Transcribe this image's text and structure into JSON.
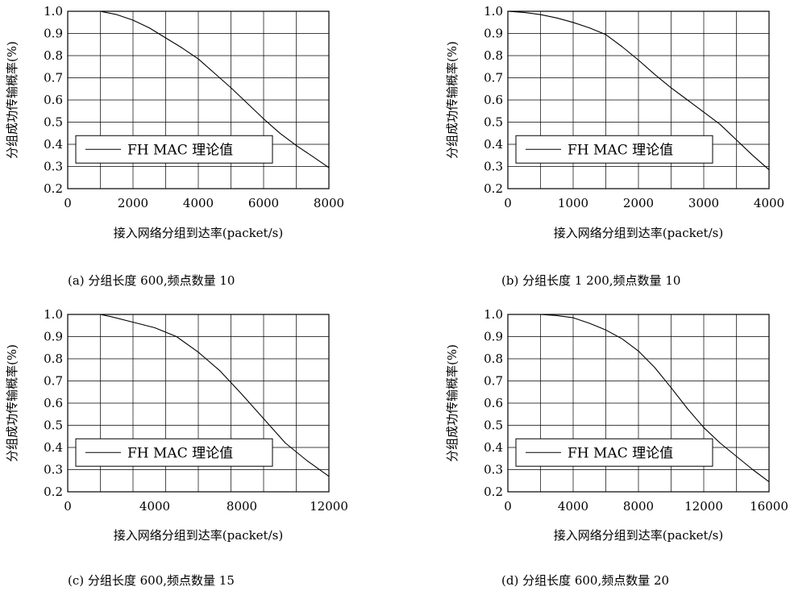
{
  "chart_data": [
    {
      "type": "line",
      "caption": "(a) 分组长度 600,频点数量 10",
      "xlabel": "接入网络分组到达率(packet/s)",
      "ylabel": "分组成功传输概率(%)",
      "xlim": [
        0,
        8000
      ],
      "ylim": [
        0.2,
        1.0
      ],
      "xticks": [
        0,
        2000,
        4000,
        6000,
        8000
      ],
      "xtick_labels": [
        "0",
        "2000",
        "4000",
        "6000",
        "8000"
      ],
      "yticks": [
        0.2,
        0.3,
        0.4,
        0.5,
        0.6,
        0.7,
        0.8,
        0.9,
        1.0
      ],
      "ytick_labels": [
        "0.2",
        "0.3",
        "0.4",
        "0.5",
        "0.6",
        "0.7",
        "0.8",
        "0.9",
        "1.0"
      ],
      "grid_x": [
        0,
        1000,
        2000,
        3000,
        4000,
        5000,
        6000,
        7000,
        8000
      ],
      "grid": true,
      "legend": {
        "label": "FH  MAC 理论值",
        "position": "lower-left"
      },
      "series": [
        {
          "name": "FH  MAC 理论值",
          "x": [
            0,
            1000,
            1500,
            2000,
            2500,
            3000,
            3500,
            4000,
            4500,
            5000,
            5500,
            6000,
            6500,
            7000,
            7500,
            8000
          ],
          "y": [
            1.0,
            1.0,
            0.985,
            0.96,
            0.925,
            0.88,
            0.835,
            0.785,
            0.72,
            0.655,
            0.585,
            0.515,
            0.45,
            0.395,
            0.345,
            0.295
          ]
        }
      ]
    },
    {
      "type": "line",
      "caption": "(b) 分组长度 1 200,频点数量 10",
      "xlabel": "接入网络分组到达率(packet/s)",
      "ylabel": "分组成功传输概率(%)",
      "xlim": [
        0,
        4000
      ],
      "ylim": [
        0.2,
        1.0
      ],
      "xticks": [
        0,
        1000,
        2000,
        3000,
        4000
      ],
      "xtick_labels": [
        "0",
        "1000",
        "2000",
        "3000",
        "4000"
      ],
      "yticks": [
        0.2,
        0.3,
        0.4,
        0.5,
        0.6,
        0.7,
        0.8,
        0.9,
        1.0
      ],
      "ytick_labels": [
        "0.2",
        "0.3",
        "0.4",
        "0.5",
        "0.6",
        "0.7",
        "0.8",
        "0.9",
        "1.0"
      ],
      "grid_x": [
        0,
        500,
        1000,
        1500,
        2000,
        2500,
        3000,
        3500,
        4000
      ],
      "grid": true,
      "legend": {
        "label": "FH  MAC 理论值",
        "position": "lower-left"
      },
      "series": [
        {
          "name": "FH  MAC 理论值",
          "x": [
            0,
            250,
            500,
            750,
            1000,
            1250,
            1500,
            1750,
            2000,
            2250,
            2500,
            2750,
            3000,
            3250,
            3500,
            3750,
            4000
          ],
          "y": [
            1.0,
            0.995,
            0.985,
            0.97,
            0.95,
            0.925,
            0.895,
            0.84,
            0.78,
            0.715,
            0.655,
            0.6,
            0.545,
            0.49,
            0.42,
            0.35,
            0.285
          ]
        }
      ]
    },
    {
      "type": "line",
      "caption": "(c) 分组长度 600,频点数量 15",
      "xlabel": "接入网络分组到达率(packet/s)",
      "ylabel": "分组成功传输概率(%)",
      "xlim": [
        0,
        12000
      ],
      "ylim": [
        0.2,
        1.0
      ],
      "xticks": [
        0,
        4000,
        8000,
        12000
      ],
      "xtick_labels": [
        "0",
        "4000",
        "8000",
        "12000"
      ],
      "yticks": [
        0.2,
        0.3,
        0.4,
        0.5,
        0.6,
        0.7,
        0.8,
        0.9,
        1.0
      ],
      "ytick_labels": [
        "0.2",
        "0.3",
        "0.4",
        "0.5",
        "0.6",
        "0.7",
        "0.8",
        "0.9",
        "1.0"
      ],
      "grid_x": [
        0,
        1500,
        3000,
        4500,
        6000,
        7500,
        9000,
        10500,
        12000
      ],
      "grid": true,
      "legend": {
        "label": "FH  MAC 理论值",
        "position": "lower-left"
      },
      "series": [
        {
          "name": "FH  MAC 理论值",
          "x": [
            0,
            1500,
            2000,
            3000,
            4000,
            5000,
            6000,
            7000,
            8000,
            9000,
            10000,
            11000,
            12000
          ],
          "y": [
            1.0,
            1.0,
            0.99,
            0.965,
            0.94,
            0.9,
            0.83,
            0.745,
            0.64,
            0.53,
            0.42,
            0.34,
            0.27
          ]
        }
      ]
    },
    {
      "type": "line",
      "caption": "(d) 分组长度 600,频点数量 20",
      "xlabel": "接入网络分组到达率(packet/s)",
      "ylabel": "分组成功传输概率(%)",
      "xlim": [
        0,
        16000
      ],
      "ylim": [
        0.2,
        1.0
      ],
      "xticks": [
        0,
        4000,
        8000,
        12000,
        16000
      ],
      "xtick_labels": [
        "0",
        "4000",
        "8000",
        "12000",
        "16000"
      ],
      "yticks": [
        0.2,
        0.3,
        0.4,
        0.5,
        0.6,
        0.7,
        0.8,
        0.9,
        1.0
      ],
      "ytick_labels": [
        "0.2",
        "0.3",
        "0.4",
        "0.5",
        "0.6",
        "0.7",
        "0.8",
        "0.9",
        "1.0"
      ],
      "grid_x": [
        0,
        2000,
        4000,
        6000,
        8000,
        10000,
        12000,
        14000,
        16000
      ],
      "grid": true,
      "legend": {
        "label": "FH  MAC 理论值",
        "position": "lower-left"
      },
      "series": [
        {
          "name": "FH  MAC 理论值",
          "x": [
            0,
            2000,
            3000,
            4000,
            5000,
            6000,
            7000,
            8000,
            9000,
            10000,
            11000,
            12000,
            13000,
            14000,
            15000,
            16000
          ],
          "y": [
            1.0,
            1.0,
            0.995,
            0.985,
            0.96,
            0.93,
            0.89,
            0.835,
            0.76,
            0.67,
            0.575,
            0.49,
            0.42,
            0.36,
            0.3,
            0.245
          ]
        }
      ]
    }
  ]
}
